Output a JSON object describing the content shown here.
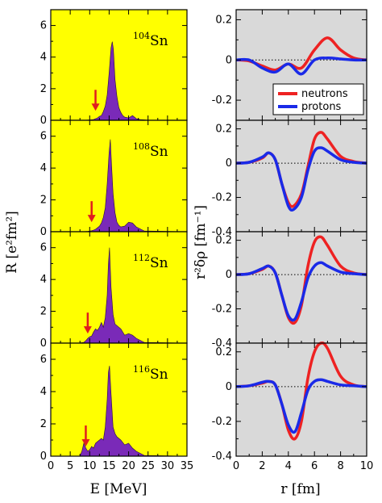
{
  "chart_data": [
    {
      "type": "area",
      "panel": "strength-104Sn",
      "isotope": {
        "mass": "104",
        "element": "Sn"
      },
      "x": [
        0,
        8,
        10,
        11,
        11.5,
        12,
        12.5,
        13,
        13.5,
        14,
        14.5,
        15,
        15.5,
        15.8,
        16.1,
        16.5,
        17,
        17.5,
        18,
        18.5,
        19,
        20,
        21,
        22,
        23,
        25,
        35
      ],
      "values": [
        0,
        0,
        0.02,
        0.05,
        0.1,
        0.15,
        0.25,
        0.3,
        0.55,
        0.9,
        1.6,
        3.0,
        4.6,
        4.98,
        4.5,
        2.6,
        1.5,
        0.8,
        0.5,
        0.3,
        0.2,
        0.15,
        0.3,
        0.1,
        0.05,
        0.01,
        0
      ],
      "arrow_at": 11.5,
      "ylim": [
        0,
        7
      ],
      "xlim": [
        0,
        35
      ]
    },
    {
      "type": "area",
      "panel": "strength-108Sn",
      "isotope": {
        "mass": "108",
        "element": "Sn"
      },
      "x": [
        0,
        8,
        9.5,
        10.5,
        11,
        11.5,
        12,
        12.5,
        13,
        13.5,
        14,
        14.5,
        15,
        15.3,
        15.6,
        16,
        16.5,
        17,
        17.5,
        18,
        19,
        20,
        21,
        22,
        24,
        35
      ],
      "values": [
        0,
        0,
        0.02,
        0.06,
        0.1,
        0.15,
        0.25,
        0.35,
        0.55,
        0.9,
        1.5,
        3.0,
        5.0,
        5.8,
        4.3,
        2.4,
        1.2,
        0.6,
        0.4,
        0.3,
        0.35,
        0.6,
        0.55,
        0.3,
        0.05,
        0
      ],
      "arrow_at": 10.5,
      "ylim": [
        0,
        7
      ],
      "xlim": [
        0,
        35
      ]
    },
    {
      "type": "area",
      "panel": "strength-112Sn",
      "isotope": {
        "mass": "112",
        "element": "Sn"
      },
      "x": [
        0,
        7,
        8.5,
        9,
        9.5,
        10,
        10.5,
        11,
        11.5,
        12,
        12.5,
        13,
        13.5,
        14,
        14.5,
        14.8,
        15.1,
        15.5,
        16,
        16.5,
        17,
        18,
        19,
        20,
        21,
        22,
        24,
        35
      ],
      "values": [
        0,
        0,
        0.05,
        0.15,
        0.3,
        0.4,
        0.45,
        0.7,
        0.9,
        0.8,
        1.0,
        1.3,
        1.0,
        1.6,
        3.0,
        5.0,
        6.0,
        3.5,
        1.8,
        1.2,
        1.1,
        0.9,
        0.5,
        0.6,
        0.5,
        0.3,
        0.05,
        0
      ],
      "arrow_at": 9.5,
      "ylim": [
        0,
        7
      ],
      "xlim": [
        0,
        35
      ]
    },
    {
      "type": "area",
      "panel": "strength-116Sn",
      "isotope": {
        "mass": "116",
        "element": "Sn"
      },
      "x": [
        0,
        7.5,
        8,
        8.5,
        9,
        9.5,
        10,
        10.5,
        11,
        11.5,
        12,
        12.5,
        13,
        13.5,
        14,
        14.5,
        14.8,
        15.1,
        15.4,
        16,
        16.5,
        17,
        18,
        19,
        20,
        21,
        22,
        24,
        35
      ],
      "values": [
        0,
        0,
        0.3,
        0.8,
        0.5,
        0.3,
        0.4,
        0.6,
        0.5,
        0.8,
        0.9,
        1.0,
        1.1,
        1.0,
        1.8,
        3.5,
        5.2,
        5.6,
        4.2,
        1.8,
        1.4,
        1.2,
        1.0,
        0.7,
        0.8,
        0.5,
        0.3,
        0.05,
        0
      ],
      "arrow_at": 9.0,
      "ylim": [
        0,
        7
      ],
      "xlim": [
        0,
        35
      ]
    },
    {
      "type": "line",
      "panel": "density-104Sn",
      "x": [
        0,
        1,
        2,
        3,
        4,
        5,
        6,
        7,
        8,
        9,
        10
      ],
      "series": [
        {
          "name": "neutrons",
          "color": "#ee2222",
          "values": [
            0.0,
            -0.005,
            -0.03,
            -0.05,
            -0.02,
            -0.04,
            0.05,
            0.11,
            0.05,
            0.01,
            0.0
          ]
        },
        {
          "name": "protons",
          "color": "#1a2ae8",
          "values": [
            0.0,
            0.0,
            -0.04,
            -0.06,
            -0.02,
            -0.07,
            0.0,
            0.01,
            0.005,
            0.0,
            0.0
          ]
        }
      ],
      "ylim": [
        -0.3,
        0.25
      ],
      "xlim": [
        0,
        10
      ]
    },
    {
      "type": "line",
      "panel": "density-108Sn",
      "x": [
        0,
        1,
        2,
        2.5,
        3,
        3.5,
        4,
        4.4,
        5,
        5.5,
        6,
        6.5,
        7,
        8,
        9,
        10
      ],
      "series": [
        {
          "name": "neutrons",
          "color": "#ee2222",
          "values": [
            0.0,
            0.005,
            0.03,
            0.06,
            0.02,
            -0.12,
            -0.23,
            -0.25,
            -0.18,
            -0.02,
            0.14,
            0.18,
            0.14,
            0.04,
            0.01,
            0.0
          ]
        },
        {
          "name": "protons",
          "color": "#1a2ae8",
          "values": [
            0.0,
            0.005,
            0.035,
            0.06,
            0.02,
            -0.12,
            -0.25,
            -0.27,
            -0.2,
            -0.04,
            0.07,
            0.09,
            0.07,
            0.02,
            0.005,
            0.0
          ]
        }
      ],
      "ylim": [
        -0.4,
        0.25
      ],
      "xlim": [
        0,
        10
      ]
    },
    {
      "type": "line",
      "panel": "density-112Sn",
      "x": [
        0,
        1,
        2,
        2.5,
        3,
        3.5,
        4,
        4.5,
        5,
        5.5,
        6,
        6.5,
        7,
        8,
        9,
        10
      ],
      "series": [
        {
          "name": "neutrons",
          "color": "#ee2222",
          "values": [
            0.0,
            0.005,
            0.03,
            0.05,
            0.01,
            -0.12,
            -0.25,
            -0.28,
            -0.18,
            0.05,
            0.19,
            0.22,
            0.17,
            0.05,
            0.01,
            0.0
          ]
        },
        {
          "name": "protons",
          "color": "#1a2ae8",
          "values": [
            0.0,
            0.005,
            0.035,
            0.05,
            0.01,
            -0.12,
            -0.24,
            -0.26,
            -0.16,
            -0.02,
            0.05,
            0.07,
            0.05,
            0.015,
            0.005,
            0.0
          ]
        }
      ],
      "ylim": [
        -0.4,
        0.25
      ],
      "xlim": [
        0,
        10
      ]
    },
    {
      "type": "line",
      "panel": "density-116Sn",
      "x": [
        0,
        1,
        2,
        2.5,
        3,
        3.5,
        4,
        4.5,
        5,
        5.5,
        6,
        6.5,
        7,
        8,
        9,
        10
      ],
      "series": [
        {
          "name": "neutrons",
          "color": "#ee2222",
          "values": [
            0.0,
            0.005,
            0.02,
            0.03,
            0.01,
            -0.1,
            -0.25,
            -0.3,
            -0.2,
            0.05,
            0.2,
            0.25,
            0.22,
            0.06,
            0.01,
            0.0
          ]
        },
        {
          "name": "protons",
          "color": "#1a2ae8",
          "values": [
            0.0,
            0.005,
            0.025,
            0.03,
            0.01,
            -0.1,
            -0.22,
            -0.26,
            -0.15,
            -0.02,
            0.03,
            0.04,
            0.03,
            0.01,
            0.005,
            0.0
          ]
        }
      ],
      "ylim": [
        -0.4,
        0.25
      ],
      "xlim": [
        0,
        10
      ]
    }
  ],
  "labels": {
    "left_ylabel": "R [e²fm²]",
    "left_xlabel": "E [MeV]",
    "right_ylabel": "r²δρ [fm⁻¹]",
    "right_xlabel": "r [fm]",
    "legend": [
      "neutrons",
      "protons"
    ],
    "left_xticks": [
      "0",
      "5",
      "10",
      "15",
      "20",
      "25",
      "30",
      "35"
    ],
    "left_yticks": [
      "0",
      "2",
      "4",
      "6"
    ],
    "right_xticks": [
      "0",
      "2",
      "4",
      "6",
      "8",
      "10"
    ],
    "right_yticks_top": [
      "-0.2",
      "0",
      "0.2"
    ],
    "right_yticks": [
      "-0.4",
      "-0.2",
      "0",
      "0.2"
    ]
  },
  "colors": {
    "left_background": "#ffff00",
    "right_background": "#d9d9d9",
    "fill": "#7a2ab8",
    "arrow": "#e01e1e",
    "neutrons": "#ee2222",
    "protons": "#1a2ae8"
  }
}
